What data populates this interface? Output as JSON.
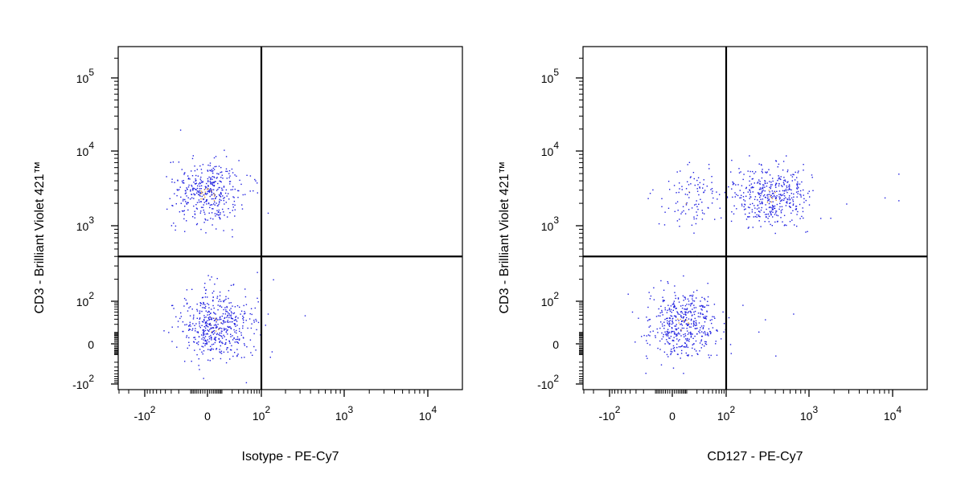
{
  "chart_data": [
    {
      "type": "scatter",
      "xlabel": "Isotype - PE-Cy7",
      "ylabel": "CD3 - Brilliant Violet 421™",
      "x_scale": "biexponential",
      "y_scale": "biexponential",
      "x_tick_labels": [
        {
          "base": "-10",
          "exp": "2",
          "value": -100
        },
        {
          "base": "0",
          "exp": "",
          "value": 0
        },
        {
          "base": "10",
          "exp": "2",
          "value": 100
        },
        {
          "base": "10",
          "exp": "3",
          "value": 1000
        },
        {
          "base": "10",
          "exp": "4",
          "value": 10000
        }
      ],
      "y_tick_labels": [
        {
          "base": "-10",
          "exp": "2",
          "value": -100
        },
        {
          "base": "0",
          "exp": "",
          "value": 0
        },
        {
          "base": "10",
          "exp": "2",
          "value": 100
        },
        {
          "base": "10",
          "exp": "3",
          "value": 1000
        },
        {
          "base": "10",
          "exp": "4",
          "value": 10000
        },
        {
          "base": "10",
          "exp": "5",
          "value": 100000
        }
      ],
      "quadrant_gate": {
        "x": 100,
        "y": 400
      },
      "populations": [
        {
          "cx": 0,
          "cy": 2700,
          "count": 420
        },
        {
          "cx": 5,
          "cy": 20,
          "count": 520
        }
      ],
      "outliers": [
        [
          120,
          1500
        ],
        [
          340,
          40
        ],
        [
          80,
          250
        ],
        [
          140,
          200
        ]
      ],
      "grid": false,
      "legend": "none"
    },
    {
      "type": "scatter",
      "xlabel": "CD127 - PE-Cy7",
      "ylabel": "CD3 - Brilliant Violet 421™",
      "x_scale": "biexponential",
      "y_scale": "biexponential",
      "x_tick_labels": [
        {
          "base": "-10",
          "exp": "2",
          "value": -100
        },
        {
          "base": "0",
          "exp": "",
          "value": 0
        },
        {
          "base": "10",
          "exp": "2",
          "value": 100
        },
        {
          "base": "10",
          "exp": "3",
          "value": 1000
        },
        {
          "base": "10",
          "exp": "4",
          "value": 10000
        }
      ],
      "y_tick_labels": [
        {
          "base": "-10",
          "exp": "2",
          "value": -100
        },
        {
          "base": "0",
          "exp": "",
          "value": 0
        },
        {
          "base": "10",
          "exp": "2",
          "value": 100
        },
        {
          "base": "10",
          "exp": "3",
          "value": 1000
        },
        {
          "base": "10",
          "exp": "4",
          "value": 10000
        },
        {
          "base": "10",
          "exp": "5",
          "value": 100000
        }
      ],
      "quadrant_gate": {
        "x": 100,
        "y": 400
      },
      "populations": [
        {
          "cx": 350,
          "cy": 2500,
          "count": 430
        },
        {
          "cx": 10,
          "cy": 2400,
          "count": 110
        },
        {
          "cx": 5,
          "cy": 20,
          "count": 470
        }
      ],
      "outliers": [
        [
          300,
          30
        ],
        [
          650,
          45
        ],
        [
          12000,
          5000
        ],
        [
          12000,
          2200
        ],
        [
          8000,
          2400
        ],
        [
          160,
          80
        ],
        [
          400,
          -10
        ],
        [
          250,
          10
        ]
      ],
      "grid": false,
      "legend": "none"
    }
  ],
  "colors": {
    "dots": "#1f1fe0",
    "dense_dots": "#e0a040",
    "axes": "#000000"
  }
}
